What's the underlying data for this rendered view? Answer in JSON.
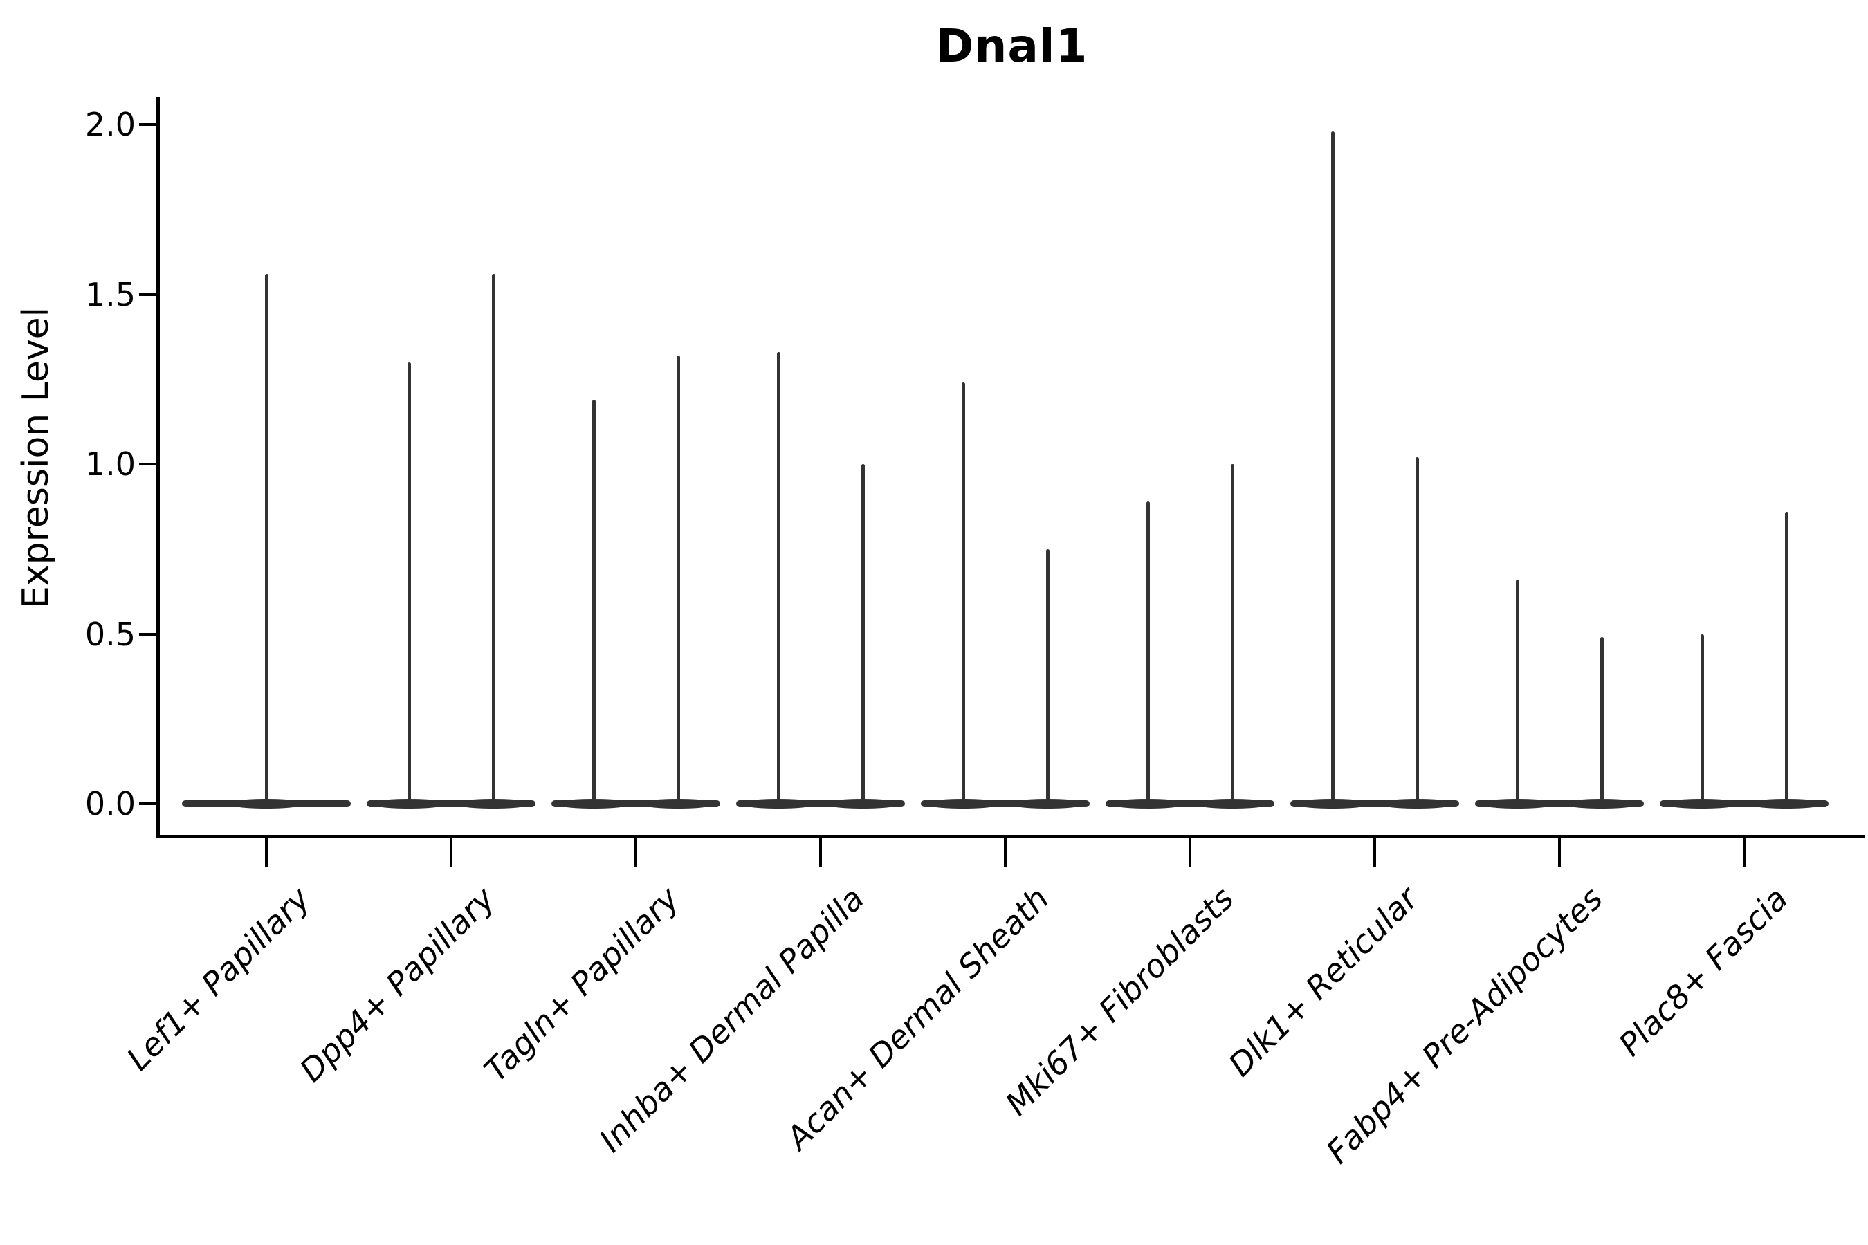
{
  "chart": {
    "title": "Dnal1",
    "ylabel": "Expression Level"
  },
  "chart_data": {
    "type": "violin",
    "title": "Dnal1",
    "xlabel": "",
    "ylabel": "Expression Level",
    "ylim": [
      0,
      2.08
    ],
    "grid": false,
    "legend": null,
    "ink_color": "#333333",
    "axis_color": "#000000",
    "y_ticks": [
      {
        "value": 0.0,
        "label": "0.0"
      },
      {
        "value": 0.5,
        "label": "0.5"
      },
      {
        "value": 1.0,
        "label": "1.0"
      },
      {
        "value": 1.5,
        "label": "1.5"
      },
      {
        "value": 2.0,
        "label": "2.0"
      }
    ],
    "categories": [
      "Lef1+ Papillary",
      "Dpp4+ Papillary",
      "Tagln+ Papillary",
      "Inhba+ Dermal Papilla",
      "Acan+ Dermal Sheath",
      "Mki67+ Fibroblasts",
      "Dlk1+ Reticular",
      "Fabp4+ Pre-Adipocytes",
      "Plac8+ Fascia"
    ],
    "violins": [
      {
        "category": "Lef1+ Papillary",
        "spike_maxima": [
          1.56
        ]
      },
      {
        "category": "Dpp4+ Papillary",
        "spike_maxima": [
          1.3,
          1.56
        ]
      },
      {
        "category": "Tagln+ Papillary",
        "spike_maxima": [
          1.19,
          1.32
        ]
      },
      {
        "category": "Inhba+ Dermal Papilla",
        "spike_maxima": [
          1.33,
          1.0
        ]
      },
      {
        "category": "Acan+ Dermal Sheath",
        "spike_maxima": [
          1.24,
          0.75
        ]
      },
      {
        "category": "Mki67+ Fibroblasts",
        "spike_maxima": [
          0.89,
          1.0
        ]
      },
      {
        "category": "Dlk1+ Reticular",
        "spike_maxima": [
          1.98,
          1.02
        ]
      },
      {
        "category": "Fabp4+ Pre-Adipocytes",
        "spike_maxima": [
          0.66,
          0.49
        ]
      },
      {
        "category": "Plac8+ Fascia",
        "spike_maxima": [
          0.5,
          0.86
        ]
      }
    ],
    "shape_note": "Each violin is flat (near-zero density body) at expression 0 with thin vertical density spikes reaching the listed maxima; categories 2-9 show two dodged spikes, category 1 a single centered spike."
  }
}
